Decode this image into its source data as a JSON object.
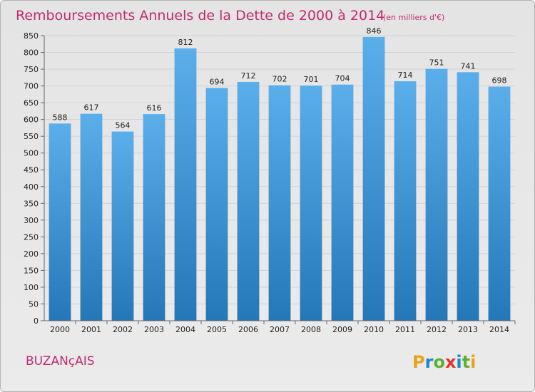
{
  "header": {
    "title": "Remboursements Annuels de la Dette de 2000 à 2014",
    "unit": "(en milliers d'€)"
  },
  "footer": {
    "city": "BUZANçAIS",
    "logo": "Proxiti"
  },
  "colors": {
    "title": "#c12a6f",
    "bar_top": "#5aaeea",
    "bar_bottom": "#2478b8"
  },
  "chart_data": {
    "type": "bar",
    "categories": [
      "2000",
      "2001",
      "2002",
      "2003",
      "2004",
      "2005",
      "2006",
      "2007",
      "2008",
      "2009",
      "2010",
      "2011",
      "2012",
      "2013",
      "2014"
    ],
    "values": [
      588,
      617,
      564,
      616,
      812,
      694,
      712,
      702,
      701,
      704,
      846,
      714,
      751,
      741,
      698
    ],
    "ylim": [
      0,
      850
    ],
    "yticks": [
      0,
      50,
      100,
      150,
      200,
      250,
      300,
      350,
      400,
      450,
      500,
      550,
      600,
      650,
      700,
      750,
      800,
      850
    ],
    "grid": true,
    "title": "Remboursements Annuels de la Dette de 2000 à 2014",
    "unit": "(en milliers d'€)"
  }
}
